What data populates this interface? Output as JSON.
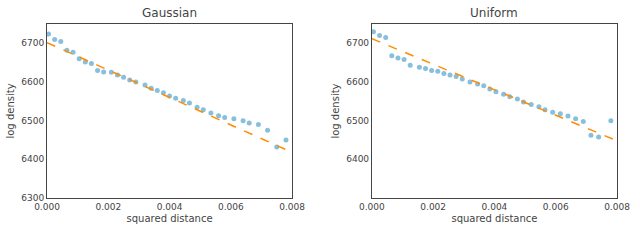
{
  "chart_data": [
    {
      "type": "scatter",
      "title": "Gaussian",
      "xlabel": "squared distance",
      "ylabel": "log density",
      "grid": false,
      "xlim": [
        0.0,
        0.008
      ],
      "xticks": [
        {
          "value": 0.0,
          "label": "0.000"
        },
        {
          "value": 0.002,
          "label": "0.002"
        },
        {
          "value": 0.004,
          "label": "0.004"
        },
        {
          "value": 0.006,
          "label": "0.006"
        },
        {
          "value": 0.008,
          "label": "0.008"
        }
      ],
      "ylim": [
        6300,
        6750
      ],
      "yticks": [
        6300,
        6400,
        6500,
        6600,
        6700
      ],
      "series": [
        {
          "type": "scatter",
          "color": "#7ab8d9",
          "marker": "circle",
          "x": [
            5e-05,
            0.00025,
            0.00045,
            0.00065,
            0.00085,
            0.00105,
            0.00125,
            0.00145,
            0.00165,
            0.00185,
            0.0021,
            0.0023,
            0.0025,
            0.0027,
            0.0029,
            0.0032,
            0.0034,
            0.0036,
            0.0038,
            0.004,
            0.0042,
            0.00445,
            0.00465,
            0.0049,
            0.0051,
            0.00535,
            0.0056,
            0.0058,
            0.0061,
            0.0064,
            0.0066,
            0.0069,
            0.0072,
            0.0075,
            0.0078
          ],
          "values": [
            6724,
            6710,
            6705,
            6682,
            6677,
            6660,
            6652,
            6648,
            6630,
            6626,
            6625,
            6618,
            6612,
            6605,
            6600,
            6592,
            6584,
            6578,
            6572,
            6564,
            6558,
            6552,
            6546,
            6535,
            6528,
            6520,
            6513,
            6508,
            6505,
            6500,
            6494,
            6490,
            6475,
            6432,
            6450
          ]
        },
        {
          "type": "line",
          "color": "#ff8c00",
          "line_style": "dashed",
          "x": [
            0.0,
            0.008
          ],
          "values": [
            6702,
            6418
          ]
        }
      ]
    },
    {
      "type": "scatter",
      "title": "Uniform",
      "xlabel": "squared distance",
      "ylabel": "log density",
      "grid": false,
      "xlim": [
        0.0,
        0.008
      ],
      "xticks": [
        {
          "value": 0.0,
          "label": "0.000"
        },
        {
          "value": 0.002,
          "label": "0.002"
        },
        {
          "value": 0.004,
          "label": "0.004"
        },
        {
          "value": 0.006,
          "label": "0.006"
        },
        {
          "value": 0.008,
          "label": "0.008"
        }
      ],
      "ylim": [
        6300,
        6750
      ],
      "yticks": [
        6400,
        6500,
        6600,
        6700
      ],
      "series": [
        {
          "type": "scatter",
          "color": "#7ab8d9",
          "marker": "circle",
          "x": [
            5e-05,
            0.00025,
            0.00045,
            0.00065,
            0.00085,
            0.00105,
            0.00125,
            0.00155,
            0.00175,
            0.00195,
            0.00215,
            0.00235,
            0.00255,
            0.00275,
            0.00295,
            0.0032,
            0.00345,
            0.00365,
            0.00385,
            0.00405,
            0.0043,
            0.0045,
            0.00475,
            0.00495,
            0.0052,
            0.00545,
            0.00565,
            0.0059,
            0.00615,
            0.0064,
            0.00665,
            0.0069,
            0.00715,
            0.0074,
            0.0078
          ],
          "values": [
            6730,
            6720,
            6715,
            6668,
            6662,
            6658,
            6643,
            6638,
            6635,
            6630,
            6628,
            6622,
            6618,
            6614,
            6608,
            6600,
            6595,
            6590,
            6582,
            6575,
            6568,
            6562,
            6556,
            6548,
            6542,
            6536,
            6528,
            6522,
            6518,
            6512,
            6505,
            6498,
            6462,
            6458,
            6500
          ]
        },
        {
          "type": "line",
          "color": "#ff8c00",
          "line_style": "dashed",
          "x": [
            0.0,
            0.008
          ],
          "values": [
            6712,
            6448
          ]
        }
      ]
    }
  ]
}
